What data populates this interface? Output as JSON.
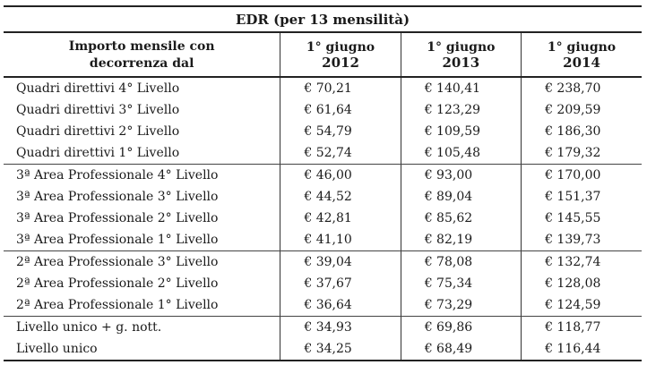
{
  "table": {
    "title": "EDR (per 13 mensilità)",
    "header": {
      "label_line1": "Importo mensile con",
      "label_line2": "decorrenza dal",
      "columns": [
        {
          "line1": "1° giugno",
          "line2": "2012"
        },
        {
          "line1": "1° giugno",
          "line2": "2013"
        },
        {
          "line1": "1° giugno",
          "line2": "2014"
        }
      ]
    },
    "groups": [
      {
        "rows": [
          {
            "label": "Quadri direttivi 4° Livello",
            "values": [
              "€ 70,21",
              "€ 140,41",
              "€ 238,70"
            ]
          },
          {
            "label": "Quadri direttivi 3° Livello",
            "values": [
              "€ 61,64",
              "€ 123,29",
              "€ 209,59"
            ]
          },
          {
            "label": "Quadri direttivi 2° Livello",
            "values": [
              "€ 54,79",
              "€ 109,59",
              "€ 186,30"
            ]
          },
          {
            "label": "Quadri direttivi 1° Livello",
            "values": [
              "€ 52,74",
              "€ 105,48",
              "€ 179,32"
            ]
          }
        ]
      },
      {
        "rows": [
          {
            "label": "3ª Area Professionale 4° Livello",
            "values": [
              "€ 46,00",
              "€ 93,00",
              "€ 170,00"
            ]
          },
          {
            "label": "3ª Area Professionale 3° Livello",
            "values": [
              "€ 44,52",
              "€ 89,04",
              "€ 151,37"
            ]
          },
          {
            "label": "3ª Area Professionale 2° Livello",
            "values": [
              "€ 42,81",
              "€ 85,62",
              "€ 145,55"
            ]
          },
          {
            "label": "3ª Area Professionale 1° Livello",
            "values": [
              "€ 41,10",
              "€ 82,19",
              "€ 139,73"
            ]
          }
        ]
      },
      {
        "rows": [
          {
            "label": "2ª Area Professionale 3° Livello",
            "values": [
              "€ 39,04",
              "€ 78,08",
              "€ 132,74"
            ]
          },
          {
            "label": "2ª Area Professionale 2° Livello",
            "values": [
              "€ 37,67",
              "€ 75,34",
              "€ 128,08"
            ]
          },
          {
            "label": "2ª Area Professionale 1° Livello",
            "values": [
              "€ 36,64",
              "€ 73,29",
              "€ 124,59"
            ]
          }
        ]
      },
      {
        "rows": [
          {
            "label": "Livello unico + g. nott.",
            "values": [
              "€ 34,93",
              "€ 69,86",
              "€ 118,77"
            ]
          },
          {
            "label": "Livello unico",
            "values": [
              "€ 34,25",
              "€ 68,49",
              "€ 116,44"
            ]
          }
        ]
      }
    ]
  }
}
